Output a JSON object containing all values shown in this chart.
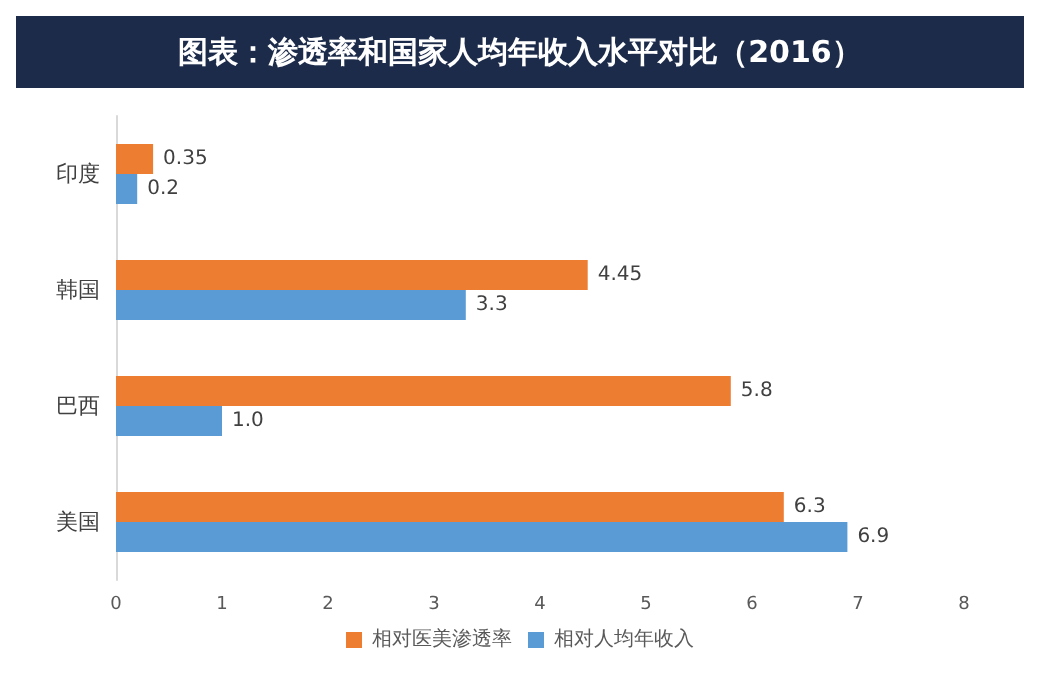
{
  "chart_data": {
    "type": "bar",
    "orientation": "horizontal",
    "title": "图表：渗透率和国家人均年收入水平对比（2016）",
    "categories": [
      "印度",
      "韩国",
      "巴西",
      "美国"
    ],
    "series": [
      {
        "name": "相对医美渗透率",
        "color": "#ed7d31",
        "values": [
          0.35,
          4.45,
          5.8,
          6.3
        ],
        "value_labels": [
          "0.35",
          "4.45",
          "5.8",
          "6.3"
        ]
      },
      {
        "name": "相对人均年收入",
        "color": "#5b9bd5",
        "values": [
          0.2,
          3.3,
          1.0,
          6.9
        ],
        "value_labels": [
          "0.2",
          "3.3",
          "1.0",
          "6.9"
        ]
      }
    ],
    "xlim": [
      0,
      8
    ],
    "xticks": [
      0,
      1,
      2,
      3,
      4,
      5,
      6,
      7,
      8
    ],
    "grid": false,
    "legend": "bottom"
  }
}
